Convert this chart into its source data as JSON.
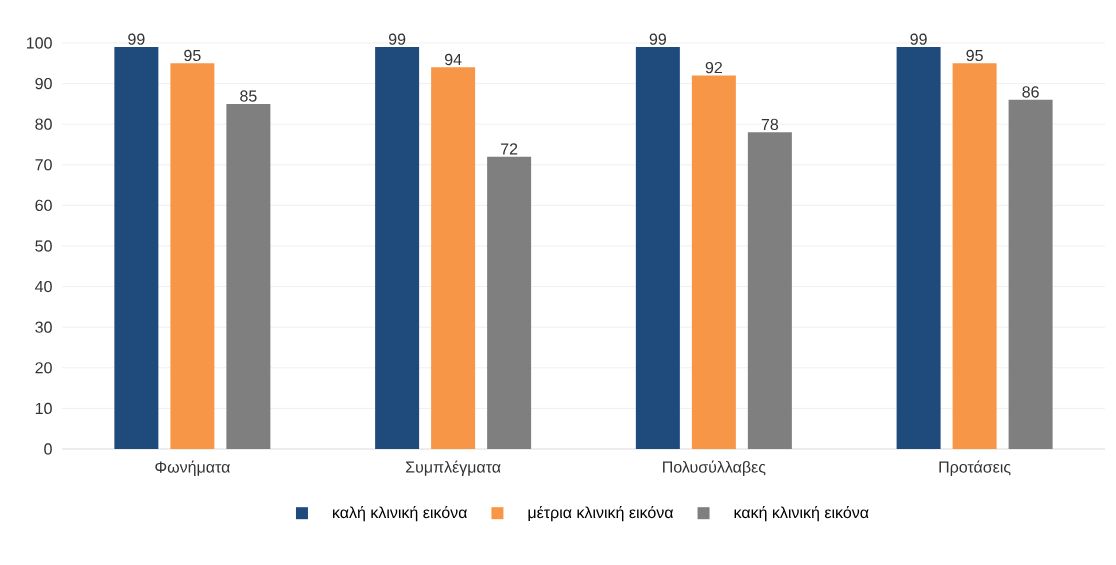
{
  "chart_data": {
    "type": "bar",
    "categories": [
      "Φωνήματα",
      "Συμπλέγματα",
      "Πολυσύλλαβες",
      "Προτάσεις"
    ],
    "series": [
      {
        "name": "καλή κλινική εικόνα",
        "color": "#1f4a7c",
        "values": [
          99,
          99,
          99,
          99
        ]
      },
      {
        "name": "μέτρια κλινική εικόνα",
        "color": "#f79646",
        "values": [
          95,
          94,
          92,
          95
        ]
      },
      {
        "name": "κακή κλινική εικόνα",
        "color": "#7f7f7f",
        "values": [
          85,
          72,
          78,
          86
        ]
      }
    ],
    "ylim": [
      0,
      100
    ],
    "yticks": [
      0,
      10,
      20,
      30,
      40,
      50,
      60,
      70,
      80,
      90,
      100
    ],
    "grid": "y",
    "legend": "bottom",
    "data_labels": true
  }
}
